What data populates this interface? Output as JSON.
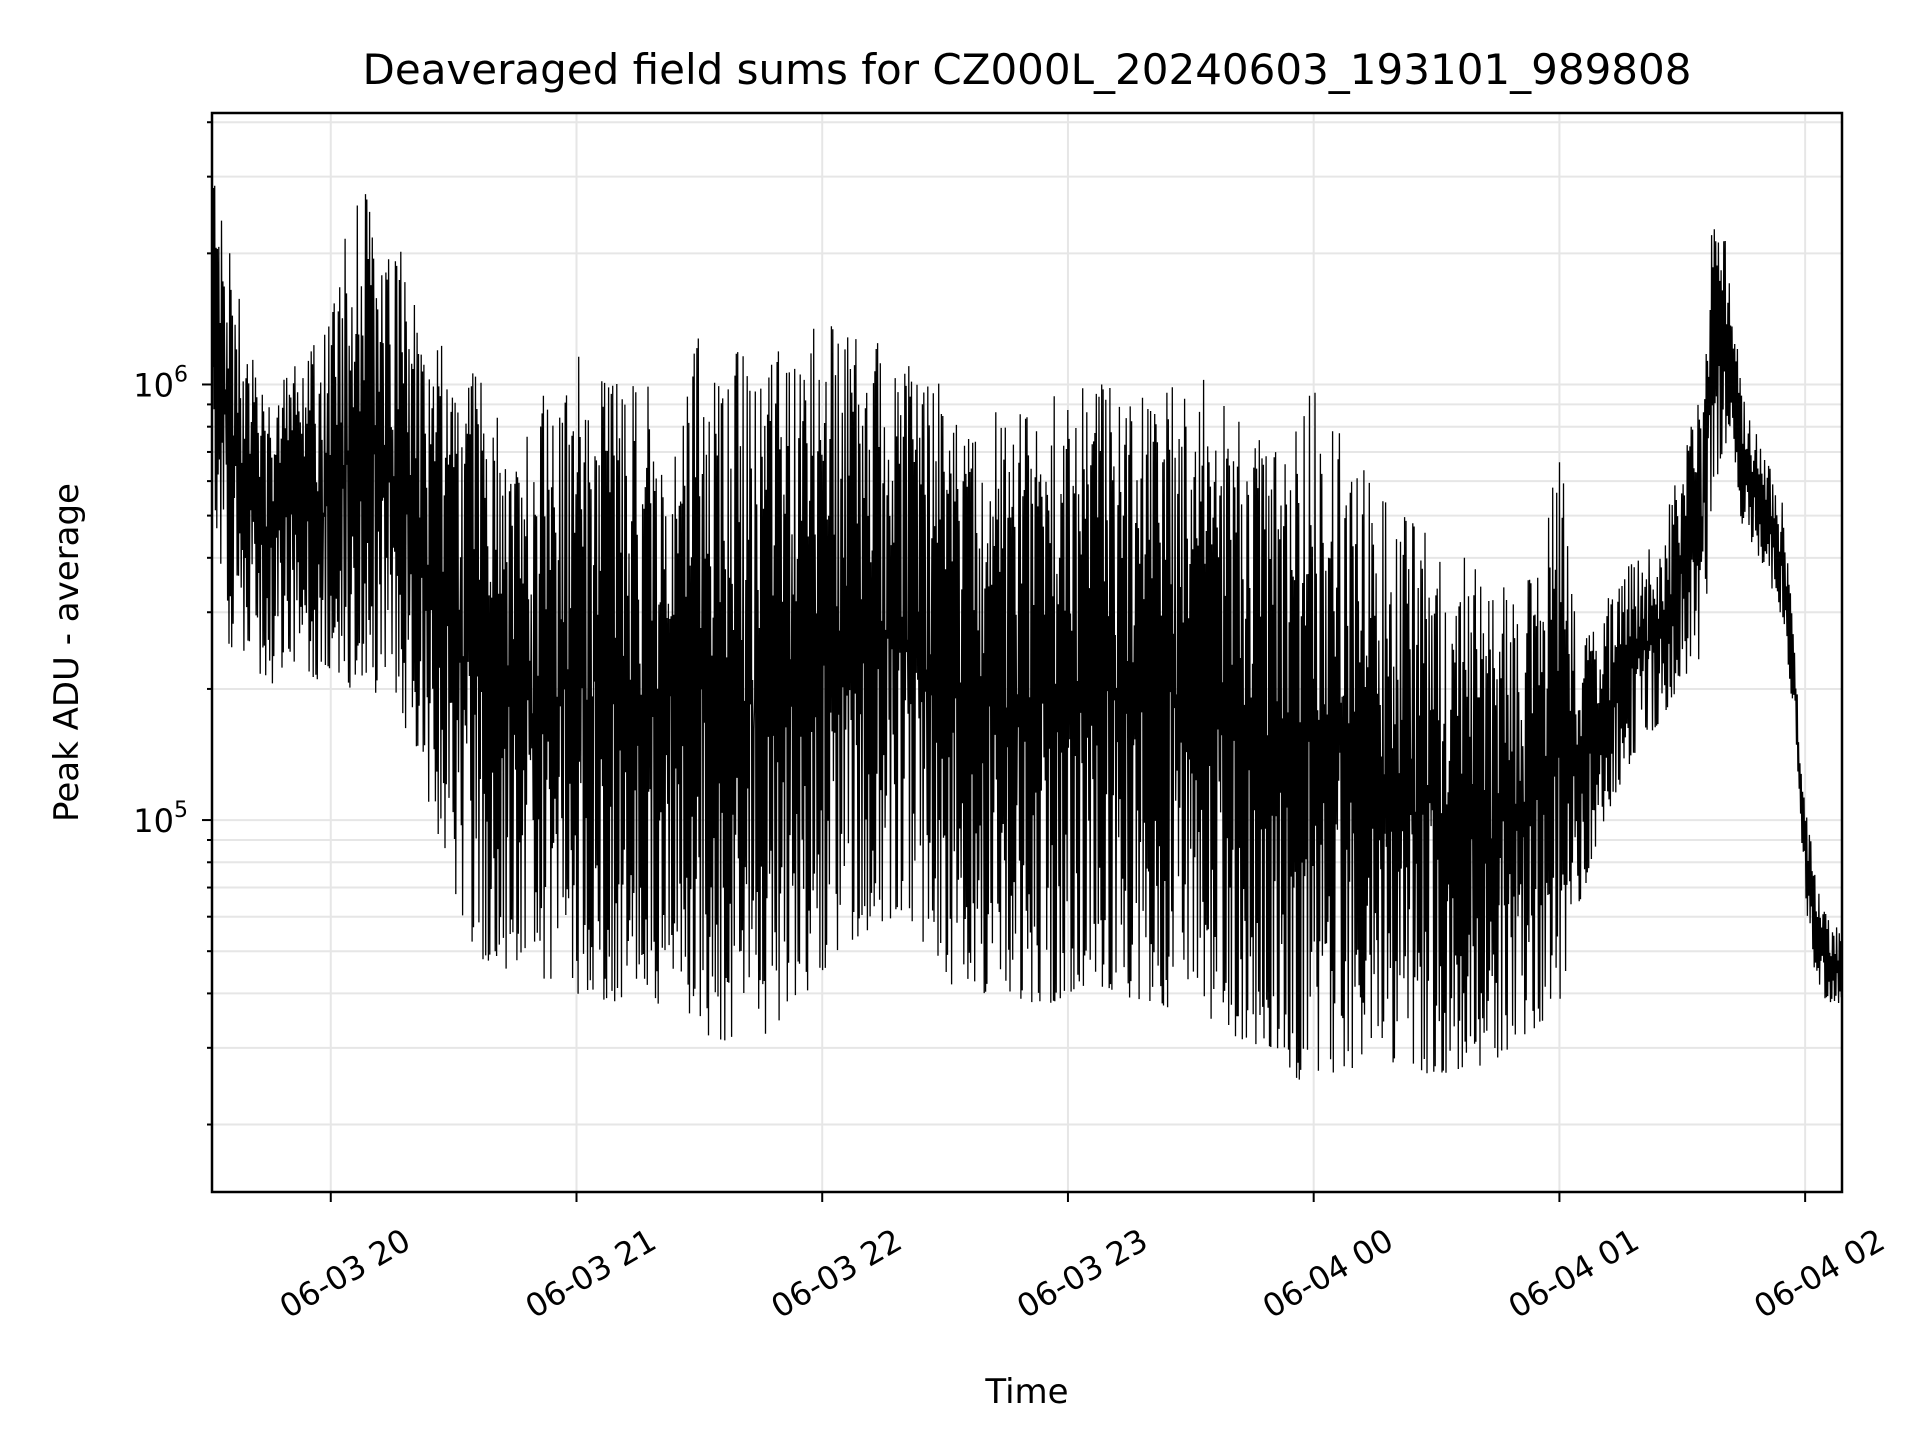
{
  "chart_data": {
    "type": "line",
    "title": "Deaveraged field sums for CZ000L_20240603_193101_989808",
    "xlabel": "Time",
    "ylabel": "Peak ADU - average",
    "yscale": "log",
    "ylim": [
      14000,
      4200000
    ],
    "xlim": [
      "06-03 19:31",
      "06-04 02:09"
    ],
    "grid": true,
    "line_color": "#000000",
    "x_ticks": [
      {
        "value": "06-03 20:00",
        "label": "06-03 20"
      },
      {
        "value": "06-03 21:00",
        "label": "06-03 21"
      },
      {
        "value": "06-03 22:00",
        "label": "06-03 22"
      },
      {
        "value": "06-03 23:00",
        "label": "06-03 23"
      },
      {
        "value": "06-04 00:00",
        "label": "06-04 00"
      },
      {
        "value": "06-04 01:00",
        "label": "06-04 01"
      },
      {
        "value": "06-04 02:00",
        "label": "06-04 02"
      }
    ],
    "y_ticks": [
      {
        "value": 100000,
        "base": "10",
        "exp": "5"
      },
      {
        "value": 1000000,
        "base": "10",
        "exp": "6"
      }
    ],
    "series": [
      {
        "name": "",
        "x": [
          "06-03 19:31",
          "06-03 19:35",
          "06-03 19:40",
          "06-03 19:45",
          "06-03 19:50",
          "06-03 19:55",
          "06-03 20:00",
          "06-03 20:05",
          "06-03 20:10",
          "06-03 20:15",
          "06-03 20:20",
          "06-03 20:25",
          "06-03 20:30",
          "06-03 20:35",
          "06-03 20:40",
          "06-03 20:45",
          "06-03 20:50",
          "06-03 20:55",
          "06-03 21:00",
          "06-03 21:10",
          "06-03 21:20",
          "06-03 21:30",
          "06-03 21:40",
          "06-03 21:50",
          "06-03 22:00",
          "06-03 22:10",
          "06-03 22:20",
          "06-03 22:30",
          "06-03 22:40",
          "06-03 22:50",
          "06-03 23:00",
          "06-03 23:10",
          "06-03 23:20",
          "06-03 23:30",
          "06-03 23:40",
          "06-03 23:50",
          "06-04 00:00",
          "06-04 00:10",
          "06-04 00:20",
          "06-04 00:30",
          "06-04 00:40",
          "06-04 00:50",
          "06-04 01:00",
          "06-04 01:05",
          "06-04 01:10",
          "06-04 01:15",
          "06-04 01:20",
          "06-04 01:25",
          "06-04 01:30",
          "06-04 01:35",
          "06-04 01:38",
          "06-04 01:41",
          "06-04 01:45",
          "06-04 01:50",
          "06-04 01:55",
          "06-04 01:58",
          "06-04 02:00",
          "06-04 02:03",
          "06-04 02:06",
          "06-04 02:09"
        ],
        "low": [
          600000,
          250000,
          220000,
          200000,
          240000,
          200000,
          220000,
          200000,
          200000,
          180000,
          150000,
          100000,
          70000,
          50000,
          45000,
          45000,
          42000,
          40000,
          40000,
          38000,
          36000,
          32000,
          30000,
          32000,
          45000,
          55000,
          60000,
          40000,
          40000,
          38000,
          38000,
          40000,
          38000,
          35000,
          32000,
          28000,
          24000,
          27000,
          27000,
          26000,
          27000,
          30000,
          38000,
          65000,
          90000,
          120000,
          150000,
          170000,
          210000,
          240000,
          600000,
          700000,
          450000,
          380000,
          280000,
          140000,
          65000,
          40000,
          38000,
          36000
        ],
        "high": [
          3300000,
          2500000,
          1300000,
          900000,
          1100000,
          1200000,
          1400000,
          2600000,
          2800000,
          2500000,
          1600000,
          1300000,
          1300000,
          1100000,
          900000,
          800000,
          1000000,
          900000,
          1200000,
          1000000,
          1000000,
          1300000,
          1200000,
          1200000,
          1400000,
          1300000,
          1200000,
          1000000,
          900000,
          900000,
          1000000,
          1000000,
          1100000,
          1100000,
          900000,
          700000,
          1000000,
          700000,
          550000,
          450000,
          400000,
          320000,
          750000,
          250000,
          300000,
          380000,
          400000,
          450000,
          700000,
          1000000,
          3200000,
          2000000,
          950000,
          700000,
          520000,
          200000,
          110000,
          70000,
          60000,
          55000
        ]
      }
    ]
  }
}
